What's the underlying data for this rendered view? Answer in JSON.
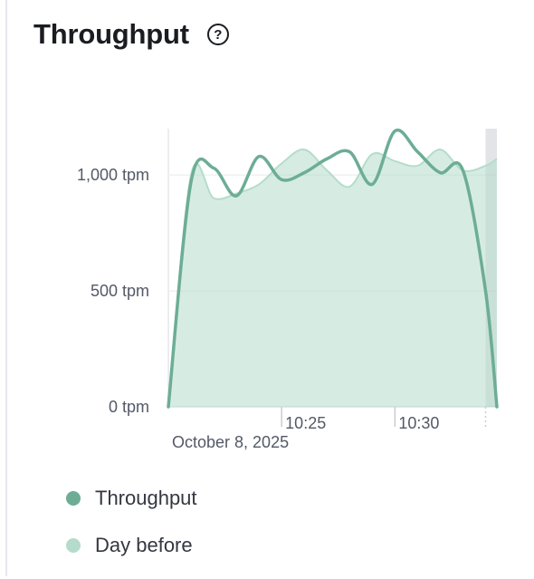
{
  "panel": {
    "title": "Throughput",
    "help_icon": "question-circle-icon"
  },
  "chart_data": {
    "type": "line",
    "title": "Throughput",
    "xlabel": "",
    "ylabel": "",
    "x_unit": "minutes",
    "x_range": [
      "10:20:00",
      "10:34:30"
    ],
    "ylim": [
      0,
      1200
    ],
    "y_ticks": [
      0,
      500,
      1000
    ],
    "y_tick_labels": [
      "0 tpm",
      "500 tpm",
      "1,000 tpm"
    ],
    "x_ticks": [
      "10:25",
      "10:30"
    ],
    "x_date_label": "October 8, 2025",
    "grid": true,
    "legend_position": "bottom",
    "shaded_region": [
      "10:34:00",
      "10:34:30"
    ],
    "series": [
      {
        "name": "Throughput",
        "color": "#6dad95",
        "style": "line",
        "x": [
          "10:20:00",
          "10:21:00",
          "10:22:00",
          "10:23:00",
          "10:24:00",
          "10:25:00",
          "10:26:00",
          "10:27:00",
          "10:28:00",
          "10:29:00",
          "10:30:00",
          "10:31:00",
          "10:32:00",
          "10:33:00",
          "10:34:00",
          "10:34:30"
        ],
        "values": [
          0,
          970,
          1030,
          910,
          1080,
          980,
          1010,
          1070,
          1100,
          960,
          1190,
          1100,
          1010,
          1020,
          500,
          0
        ]
      },
      {
        "name": "Day before",
        "color": "#b5dccb",
        "style": "area",
        "x": [
          "10:20:00",
          "10:21:00",
          "10:22:00",
          "10:23:00",
          "10:24:00",
          "10:25:00",
          "10:26:00",
          "10:27:00",
          "10:28:00",
          "10:29:00",
          "10:30:00",
          "10:31:00",
          "10:32:00",
          "10:33:00",
          "10:34:00",
          "10:34:30"
        ],
        "values": [
          0,
          1000,
          900,
          920,
          960,
          1050,
          1110,
          1020,
          950,
          1090,
          1060,
          1040,
          1110,
          1020,
          1040,
          1070
        ]
      }
    ]
  },
  "legend": {
    "items": [
      {
        "label": "Throughput",
        "color": "#6dad95"
      },
      {
        "label": "Day before",
        "color": "#b5dccb"
      }
    ]
  }
}
